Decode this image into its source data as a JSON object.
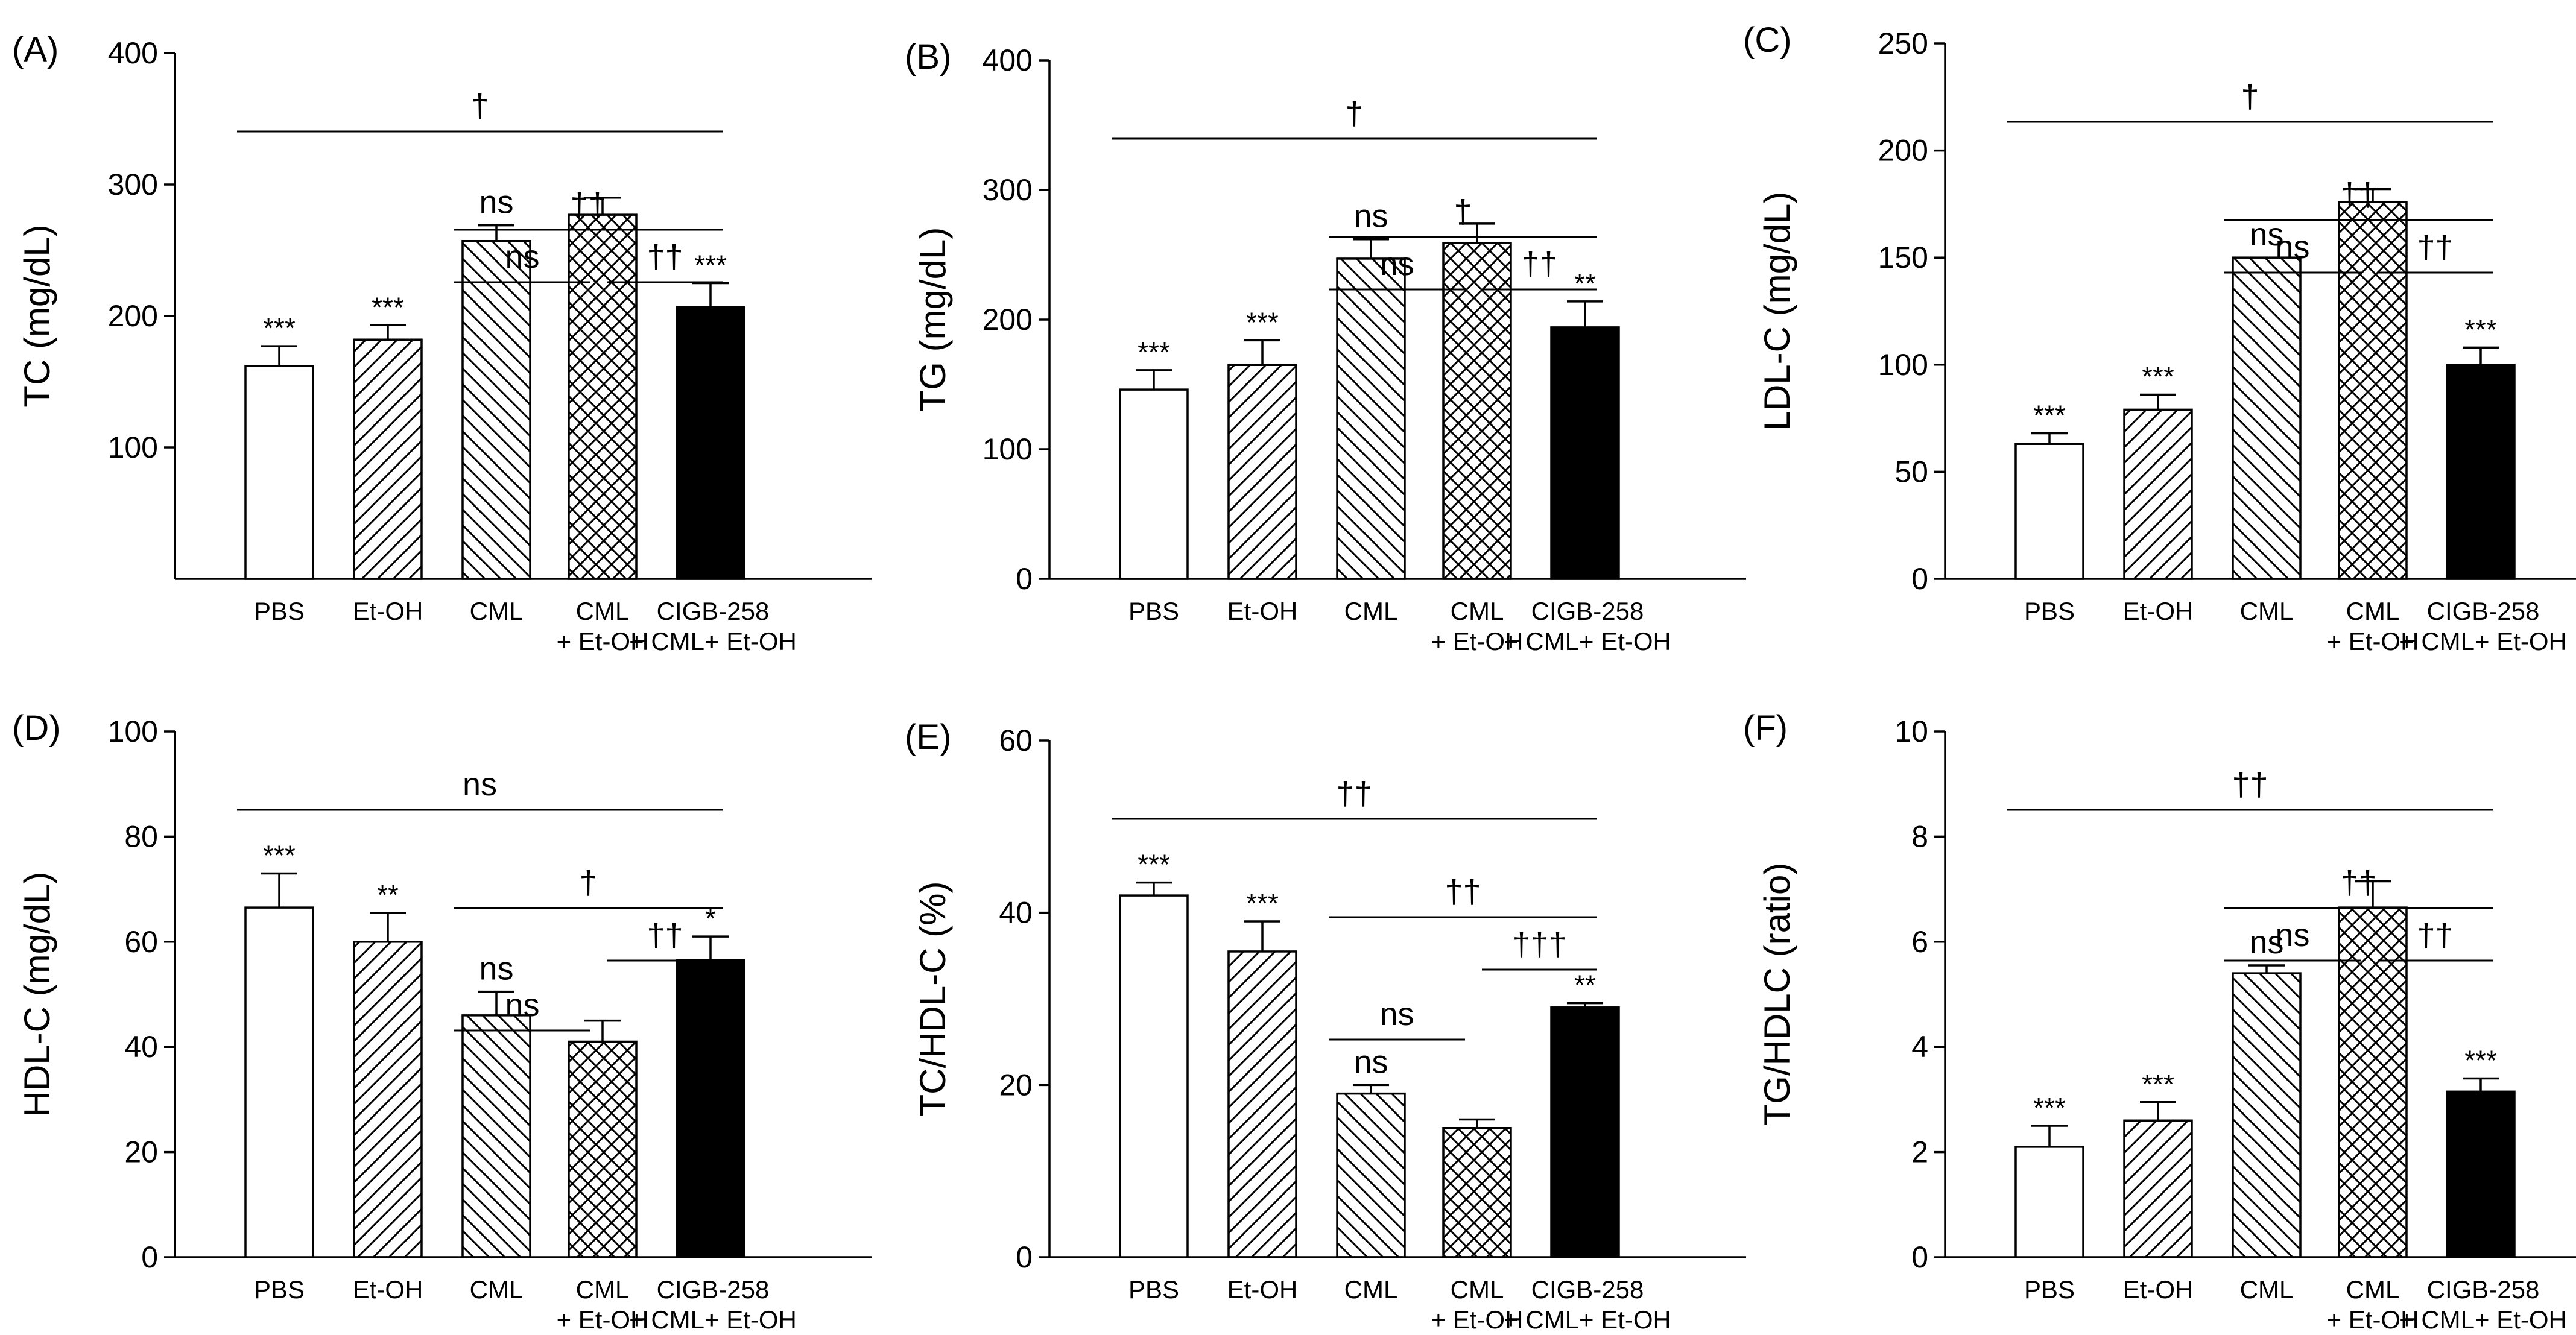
{
  "figure": {
    "categories": [
      "PBS",
      "Et-OH",
      "CML",
      [
        "CML",
        "+ Et-OH"
      ],
      [
        "CIGB-258",
        "+ CML+  Et-OH"
      ]
    ],
    "fill_styles": [
      "empty",
      "diag-up",
      "diag-down",
      "crosshatch",
      "solid"
    ],
    "colors": {
      "bar_stroke": "#000000",
      "solid_fill": "#000000",
      "background": "#ffffff"
    }
  },
  "chart_data": [
    {
      "panel": "(A)",
      "type": "bar",
      "ylabel": "TC (mg/dL)",
      "ylim": [
        0,
        400
      ],
      "yticks": [
        100,
        200,
        300,
        400
      ],
      "values": [
        162,
        182,
        257,
        277,
        207
      ],
      "errors": [
        15,
        11,
        12,
        13,
        18
      ],
      "bar_labels": [
        "***",
        "***",
        "ns",
        "",
        "***"
      ],
      "comparisons": [
        {
          "from": 0,
          "to": 4,
          "label": "†",
          "level": 0
        },
        {
          "from": 2,
          "to": 4,
          "label": "††",
          "level": 1
        },
        {
          "from": 2,
          "to": 3,
          "label": "ns",
          "level": 2
        },
        {
          "from": 3,
          "to": 4,
          "label": "††",
          "level": 2
        }
      ]
    },
    {
      "panel": "(B)",
      "type": "bar",
      "ylabel": "TG (mg/dL)",
      "ylim": [
        0,
        400
      ],
      "yticks": [
        0,
        100,
        200,
        300,
        400
      ],
      "values": [
        146,
        165,
        247,
        259,
        194
      ],
      "errors": [
        15,
        19,
        15,
        15,
        20
      ],
      "bar_labels": [
        "***",
        "***",
        "ns",
        "",
        "**"
      ],
      "comparisons": [
        {
          "from": 0,
          "to": 4,
          "label": "†",
          "level": 0
        },
        {
          "from": 2,
          "to": 4,
          "label": "†",
          "level": 1
        },
        {
          "from": 2,
          "to": 3,
          "label": "ns",
          "level": 2
        },
        {
          "from": 3,
          "to": 4,
          "label": "††",
          "level": 2
        }
      ]
    },
    {
      "panel": "(C)",
      "type": "bar",
      "ylabel": "LDL-C (mg/dL)",
      "ylim": [
        0,
        250
      ],
      "yticks": [
        0,
        50,
        100,
        150,
        200,
        250
      ],
      "values": [
        63,
        79,
        150,
        176,
        100
      ],
      "errors": [
        5,
        7,
        0,
        6,
        8
      ],
      "bar_labels": [
        "***",
        "***",
        "ns",
        "",
        "***"
      ],
      "comparisons": [
        {
          "from": 0,
          "to": 4,
          "label": "†",
          "level": 0
        },
        {
          "from": 2,
          "to": 4,
          "label": "††",
          "level": 1
        },
        {
          "from": 2,
          "to": 3,
          "label": "ns",
          "level": 2
        },
        {
          "from": 3,
          "to": 4,
          "label": "††",
          "level": 2
        }
      ]
    },
    {
      "panel": "(D)",
      "type": "bar",
      "ylabel": "HDL-C (mg/dL)",
      "ylim": [
        0,
        100
      ],
      "yticks": [
        0,
        20,
        40,
        60,
        80,
        100
      ],
      "values": [
        66.5,
        60,
        46,
        41,
        56.5
      ],
      "errors": [
        6.5,
        5.5,
        4.5,
        4,
        4.5
      ],
      "bar_labels": [
        "***",
        "**",
        "ns",
        "",
        "*"
      ],
      "comparisons": [
        {
          "from": 0,
          "to": 4,
          "label": "ns",
          "level": 0
        },
        {
          "from": 2,
          "to": 4,
          "label": "†",
          "level": 1
        },
        {
          "from": 3,
          "to": 4,
          "label": "††",
          "level": 2
        },
        {
          "from": 2,
          "to": 3,
          "label": "ns",
          "level": 3
        }
      ]
    },
    {
      "panel": "(E)",
      "type": "bar",
      "ylabel": "TC/HDL-C (%)",
      "ylim": [
        0,
        60
      ],
      "yticks": [
        0,
        20,
        40,
        60
      ],
      "values": [
        42,
        35.5,
        19,
        15,
        29
      ],
      "errors": [
        1.5,
        3.5,
        1,
        1,
        0.5
      ],
      "bar_labels": [
        "***",
        "***",
        "ns",
        "",
        "**"
      ],
      "comparisons": [
        {
          "from": 0,
          "to": 4,
          "label": "††",
          "level": 0
        },
        {
          "from": 2,
          "to": 4,
          "label": "††",
          "level": 1
        },
        {
          "from": 3,
          "to": 4,
          "label": "†††",
          "level": 2
        },
        {
          "from": 2,
          "to": 3,
          "label": "ns",
          "level": 3
        }
      ]
    },
    {
      "panel": "(F)",
      "type": "bar",
      "ylabel": "TG/HDLC (ratio)",
      "ylim": [
        0,
        10
      ],
      "yticks": [
        0,
        2,
        4,
        6,
        8,
        10
      ],
      "values": [
        2.1,
        2.6,
        5.4,
        6.65,
        3.15
      ],
      "errors": [
        0.4,
        0.35,
        0.15,
        0.5,
        0.25
      ],
      "bar_labels": [
        "***",
        "***",
        "ns",
        "",
        "***"
      ],
      "comparisons": [
        {
          "from": 0,
          "to": 4,
          "label": "††",
          "level": 0
        },
        {
          "from": 2,
          "to": 4,
          "label": "††",
          "level": 1
        },
        {
          "from": 2,
          "to": 3,
          "label": "ns",
          "level": 2
        },
        {
          "from": 3,
          "to": 4,
          "label": "††",
          "level": 2
        }
      ]
    }
  ]
}
